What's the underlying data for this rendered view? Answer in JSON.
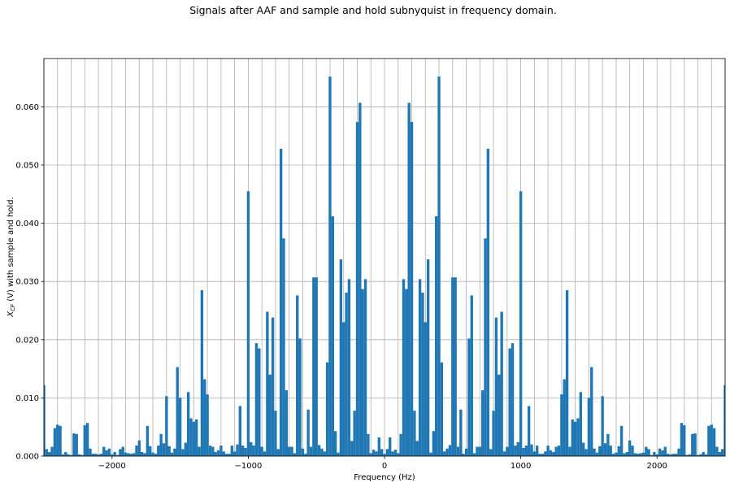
{
  "chart_data": {
    "type": "bar",
    "title": "Signals after AAF and sample and hold subnyquist in frequency domain.",
    "xlabel": "Frequency (Hz)",
    "ylabel_main": "X",
    "ylabel_sub": "CF",
    "ylabel_rest": " (V) with sample and hold.",
    "xlim": [
      -2500,
      2500
    ],
    "ylim": [
      0,
      0.0683
    ],
    "xticks": [
      -2000,
      -1000,
      0,
      1000,
      2000
    ],
    "xtick_labels": [
      "−2000",
      "−1000",
      "0",
      "1000",
      "2000"
    ],
    "yticks": [
      0.0,
      0.01,
      0.02,
      0.03,
      0.04,
      0.05,
      0.06
    ],
    "ytick_labels": [
      "0.000",
      "0.010",
      "0.020",
      "0.030",
      "0.040",
      "0.050",
      "0.060"
    ],
    "grid": true,
    "bar_color": "#1f77b4",
    "bin_width": 20,
    "x": [
      0,
      20,
      40,
      60,
      80,
      100,
      120,
      140,
      160,
      180,
      200,
      220,
      240,
      260,
      280,
      300,
      320,
      340,
      360,
      380,
      400,
      420,
      440,
      460,
      480,
      500,
      520,
      540,
      560,
      580,
      600,
      620,
      640,
      660,
      680,
      700,
      720,
      740,
      760,
      780,
      800,
      820,
      840,
      860,
      880,
      900,
      920,
      940,
      960,
      980,
      1000,
      1020,
      1040,
      1060,
      1080,
      1100,
      1120,
      1140,
      1160,
      1180,
      1200,
      1220,
      1240,
      1260,
      1280,
      1300,
      1320,
      1340,
      1360,
      1380,
      1400,
      1420,
      1440,
      1460,
      1480,
      1500,
      1520,
      1540,
      1560,
      1580,
      1600,
      1620,
      1640,
      1660,
      1680,
      1700,
      1720,
      1740,
      1760,
      1780,
      1800,
      1820,
      1840,
      1860,
      1880,
      1900,
      1920,
      1940,
      1960,
      1980,
      2000,
      2020,
      2040,
      2060,
      2080,
      2100,
      2120,
      2140,
      2160,
      2180,
      2200,
      2220,
      2240,
      2260,
      2280,
      2300,
      2320,
      2340,
      2360,
      2380,
      2400,
      2420,
      2440,
      2460,
      2480,
      2500
    ],
    "values": [
      0.0004,
      0.0012,
      0.0032,
      0.0008,
      0.0011,
      0.0005,
      0.0038,
      0.0304,
      0.0287,
      0.0607,
      0.0574,
      0.0078,
      0.0026,
      0.0304,
      0.0281,
      0.023,
      0.0338,
      0.0006,
      0.0043,
      0.0412,
      0.0652,
      0.0161,
      0.0008,
      0.0013,
      0.0019,
      0.0307,
      0.0307,
      0.0016,
      0.008,
      0.0004,
      0.0013,
      0.0202,
      0.0276,
      0.0005,
      0.0016,
      0.0016,
      0.0113,
      0.0374,
      0.0528,
      0.0012,
      0.0078,
      0.0238,
      0.014,
      0.0248,
      0.0008,
      0.0016,
      0.0185,
      0.0194,
      0.0018,
      0.0024,
      0.0455,
      0.0014,
      0.0018,
      0.0086,
      0.002,
      0.0008,
      0.0018,
      0.0004,
      0.0004,
      0.0008,
      0.0018,
      0.001,
      0.0007,
      0.0016,
      0.0018,
      0.0106,
      0.0132,
      0.0285,
      0.0016,
      0.0063,
      0.0059,
      0.0065,
      0.011,
      0.0023,
      0.0012,
      0.01,
      0.0153,
      0.0013,
      0.0006,
      0.0017,
      0.0103,
      0.0022,
      0.0038,
      0.0018,
      0.0004,
      0.0006,
      0.0017,
      0.0052,
      0.0005,
      0.0007,
      0.0027,
      0.0018,
      0.0005,
      0.0004,
      0.0005,
      0.0006,
      0.0016,
      0.0012,
      0.0002,
      0.0007,
      0.0003,
      0.0013,
      0.001,
      0.0016,
      0.0004,
      0.0003,
      0.0004,
      0.0004,
      0.0013,
      0.0057,
      0.0053,
      0.0002,
      0.0003,
      0.0038,
      0.0039,
      0.0002,
      0.0003,
      0.0007,
      0.0003,
      0.0052,
      0.0054,
      0.0048,
      0.0016,
      0.0007,
      0.0012,
      0.0122
    ],
    "symmetric": true
  }
}
